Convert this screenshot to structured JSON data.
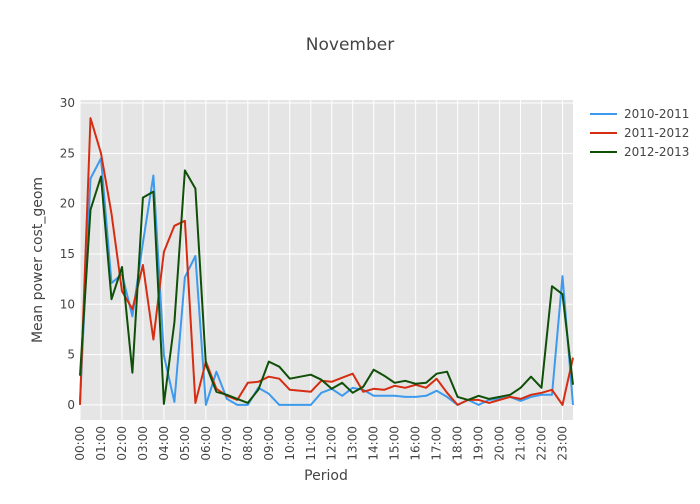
{
  "chart_data": {
    "type": "line",
    "title": "November",
    "xlabel": "Period",
    "ylabel": "Mean power cost_geom",
    "ylim": [
      -1.5,
      30.3
    ],
    "yticks": [
      0,
      5,
      10,
      15,
      20,
      25,
      30
    ],
    "ytick_labels": [
      "0",
      "5",
      "10",
      "15",
      "20",
      "25",
      "30"
    ],
    "xticks": [
      "00:00",
      "01:00",
      "02:00",
      "03:00",
      "04:00",
      "05:00",
      "06:00",
      "07:00",
      "08:00",
      "09:00",
      "10:00",
      "11:00",
      "12:00",
      "13:00",
      "14:00",
      "15:00",
      "16:00",
      "17:00",
      "18:00",
      "19:00",
      "20:00",
      "21:00",
      "22:00",
      "23:00"
    ],
    "x_units": "half-hour periods from 00:00 (0 = 00:00, 47 = 23:30)",
    "x": [
      0,
      1,
      2,
      3,
      4,
      5,
      6,
      7,
      8,
      9,
      10,
      11,
      12,
      13,
      14,
      15,
      16,
      17,
      18,
      19,
      20,
      21,
      22,
      23,
      24,
      25,
      26,
      27,
      28,
      29,
      30,
      31,
      32,
      33,
      34,
      35,
      36,
      37,
      38,
      39,
      40,
      41,
      42,
      43,
      44,
      45,
      46,
      47
    ],
    "grid": true,
    "legend_position": "top-right",
    "series": [
      {
        "name": "2010-2011",
        "color": "#3d9aed",
        "values": [
          0.3,
          22.5,
          24.5,
          12.1,
          13.0,
          8.8,
          16.1,
          22.8,
          4.9,
          0.3,
          12.7,
          14.8,
          0.0,
          3.3,
          0.6,
          0.0,
          0.0,
          1.7,
          1.1,
          0.0,
          0.0,
          0.0,
          0.0,
          1.2,
          1.6,
          0.9,
          1.7,
          1.5,
          0.9,
          0.9,
          0.9,
          0.8,
          0.8,
          0.9,
          1.4,
          0.8,
          0.0,
          0.5,
          0.0,
          0.5,
          0.6,
          0.8,
          0.4,
          0.8,
          1.0,
          1.0,
          12.8,
          0.0
        ]
      },
      {
        "name": "2011-2012",
        "color": "#d62d12",
        "values": [
          0.0,
          28.5,
          25.0,
          19.0,
          11.3,
          9.5,
          13.9,
          6.5,
          15.2,
          17.8,
          18.3,
          0.2,
          4.3,
          1.6,
          0.9,
          0.5,
          2.2,
          2.3,
          2.8,
          2.6,
          1.5,
          1.4,
          1.3,
          2.4,
          2.3,
          2.7,
          3.1,
          1.3,
          1.6,
          1.5,
          1.9,
          1.7,
          2.0,
          1.7,
          2.6,
          1.2,
          0.0,
          0.5,
          0.5,
          0.2,
          0.5,
          0.8,
          0.6,
          1.0,
          1.2,
          1.5,
          0.0,
          4.7
        ]
      },
      {
        "name": "2012-2013",
        "color": "#0f4f08",
        "values": [
          2.9,
          19.4,
          22.7,
          10.5,
          13.7,
          3.2,
          20.6,
          21.2,
          0.1,
          8.2,
          23.3,
          21.5,
          4.0,
          1.3,
          1.0,
          0.6,
          0.2,
          1.5,
          4.3,
          3.8,
          2.6,
          2.8,
          3.0,
          2.5,
          1.6,
          2.2,
          1.2,
          1.8,
          3.5,
          2.9,
          2.2,
          2.4,
          2.1,
          2.2,
          3.1,
          3.3,
          0.8,
          0.5,
          0.9,
          0.6,
          0.8,
          1.0,
          1.7,
          2.8,
          1.7,
          11.8,
          11.0,
          2.0
        ]
      }
    ]
  }
}
